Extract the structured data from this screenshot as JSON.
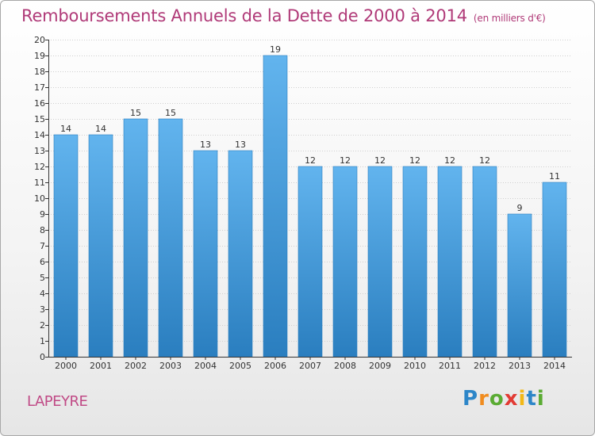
{
  "header": {
    "title": "Remboursements Annuels de la Dette de 2000 à 2014",
    "subtitle": "(en milliers d'€)"
  },
  "footer": {
    "commune": "LAPEYRE",
    "brand": [
      "P",
      "r",
      "o",
      "x",
      "i",
      "t",
      "i"
    ]
  },
  "colors": {
    "title": "#b03a78",
    "bar_light": "#62b4ee",
    "bar_dark": "#2a7ebf",
    "axis": "#333333",
    "grid": "#cfcfcf"
  },
  "chart_data": {
    "type": "bar",
    "title": "Remboursements Annuels de la Dette de 2000 à 2014",
    "subtitle": "(en milliers d'€)",
    "categories": [
      "2000",
      "2001",
      "2002",
      "2003",
      "2004",
      "2005",
      "2006",
      "2007",
      "2008",
      "2009",
      "2010",
      "2011",
      "2012",
      "2013",
      "2014"
    ],
    "values": [
      14,
      14,
      15,
      15,
      13,
      13,
      19,
      12,
      12,
      12,
      12,
      12,
      12,
      9,
      11
    ],
    "ylim": [
      0,
      20
    ],
    "yticks": [
      0,
      1,
      2,
      3,
      4,
      5,
      6,
      7,
      8,
      9,
      10,
      11,
      12,
      13,
      14,
      15,
      16,
      17,
      18,
      19,
      20
    ],
    "data_labels": true,
    "grid": "horizontal",
    "legend": "none"
  }
}
